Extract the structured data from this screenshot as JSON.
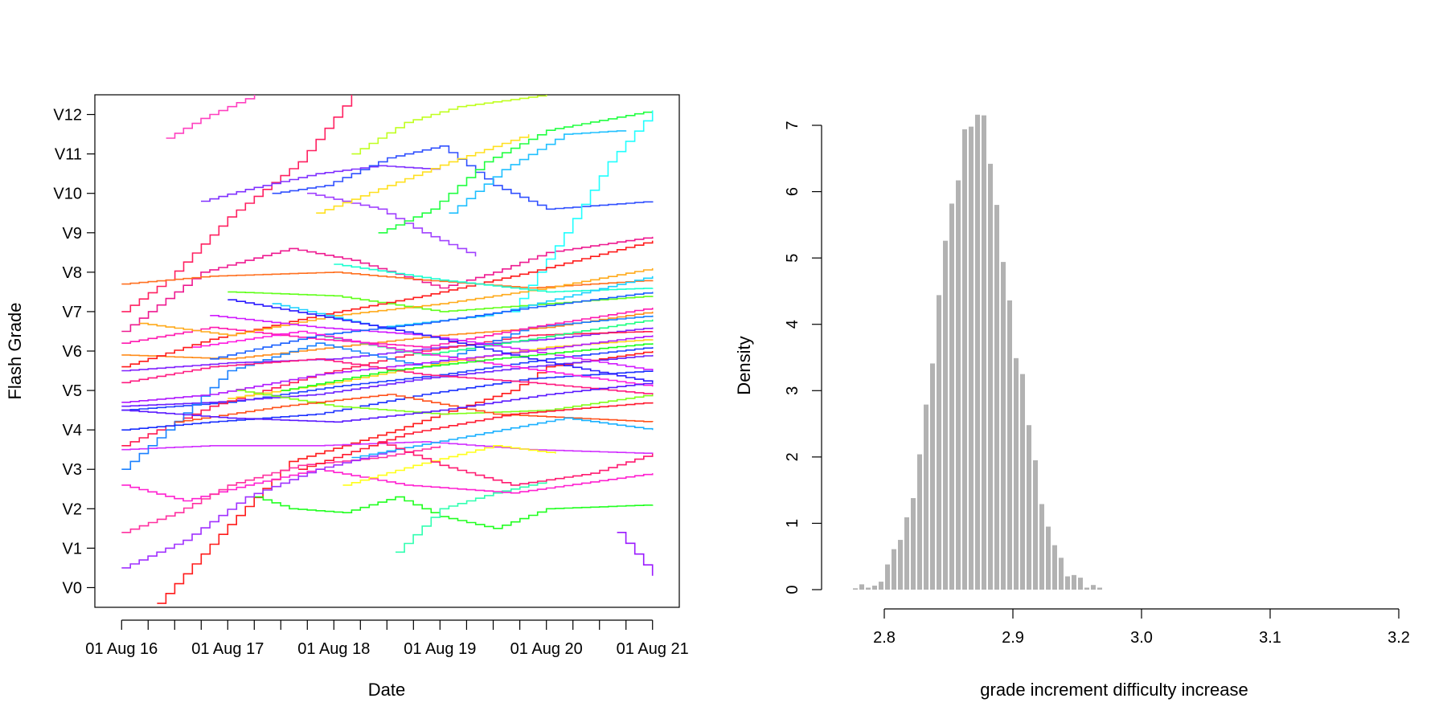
{
  "chart_data": [
    {
      "type": "line",
      "step": true,
      "title": "",
      "xlabel": "Date",
      "ylabel": "Flash Grade",
      "x_ticks": [
        "01 Aug 16",
        "01 Aug 17",
        "01 Aug 18",
        "01 Aug 19",
        "01 Aug 20",
        "01 Aug 21"
      ],
      "x_tick_dates": [
        "2016-08-01",
        "2017-08-01",
        "2018-08-01",
        "2019-08-01",
        "2020-08-01",
        "2021-08-01"
      ],
      "x_minor_ticks_per_year": 4,
      "xlim": [
        "2016-05-01",
        "2021-11-01"
      ],
      "y_ticks": [
        "V0",
        "V1",
        "V2",
        "V3",
        "V4",
        "V5",
        "V6",
        "V7",
        "V8",
        "V9",
        "V10",
        "V11",
        "V12"
      ],
      "ylim": [
        -0.5,
        12.5
      ],
      "grid": false,
      "legend": "none",
      "series": [
        {
          "color": "#ff1a1a",
          "x": [
            "2016-12-01",
            "2017-08-01",
            "2018-03-01",
            "2019-03-01",
            "2019-08-01",
            "2020-04-01",
            "2020-08-01",
            "2021-08-01"
          ],
          "y": [
            -0.4,
            1.6,
            3.2,
            4.0,
            4.4,
            5.0,
            5.6,
            6.0
          ]
        },
        {
          "color": "#ff2060",
          "x": [
            "2016-08-01",
            "2017-01-01",
            "2017-08-01",
            "2018-04-01",
            "2018-10-01"
          ],
          "y": [
            7.0,
            7.8,
            9.4,
            10.8,
            12.5
          ]
        },
        {
          "color": "#ff40c0",
          "x": [
            "2017-01-01",
            "2017-05-01",
            "2017-11-01"
          ],
          "y": [
            11.4,
            11.9,
            12.5
          ]
        },
        {
          "color": "#ee1a90",
          "x": [
            "2016-08-01",
            "2016-11-01",
            "2017-05-01",
            "2018-03-01",
            "2018-10-01",
            "2019-08-01",
            "2020-02-01",
            "2020-08-01",
            "2021-08-01"
          ],
          "y": [
            6.5,
            7.0,
            8.0,
            8.6,
            8.3,
            7.6,
            8.0,
            8.5,
            8.9
          ]
        },
        {
          "color": "#ff7020",
          "x": [
            "2016-08-01",
            "2017-06-01",
            "2018-08-01",
            "2019-06-01",
            "2020-06-01",
            "2021-08-01"
          ],
          "y": [
            7.7,
            7.9,
            8.0,
            7.8,
            7.6,
            7.8
          ]
        },
        {
          "color": "#2040ff",
          "x": [
            "2016-08-01",
            "2017-08-01",
            "2018-08-01",
            "2019-08-01",
            "2020-08-01",
            "2021-08-01"
          ],
          "y": [
            4.5,
            4.7,
            5.1,
            5.4,
            5.8,
            6.1
          ]
        },
        {
          "color": "#6a20ff",
          "x": [
            "2016-08-01",
            "2017-06-01",
            "2018-06-01",
            "2019-06-01",
            "2020-06-01",
            "2021-08-01"
          ],
          "y": [
            4.6,
            4.7,
            4.9,
            5.3,
            5.6,
            5.9
          ]
        },
        {
          "color": "#8030ff",
          "x": [
            "2017-05-01",
            "2017-10-01",
            "2018-06-01",
            "2019-01-01",
            "2019-08-01"
          ],
          "y": [
            9.8,
            10.1,
            10.5,
            10.7,
            10.6
          ]
        },
        {
          "color": "#3050ff",
          "x": [
            "2018-01-01",
            "2018-07-01",
            "2019-02-01",
            "2019-08-01",
            "2020-02-01",
            "2020-08-01",
            "2021-08-01"
          ],
          "y": [
            10.0,
            10.2,
            10.9,
            11.2,
            10.2,
            9.6,
            9.8
          ]
        },
        {
          "color": "#a040ff",
          "x": [
            "2018-05-01",
            "2019-01-01",
            "2019-06-01",
            "2019-12-01"
          ],
          "y": [
            10.0,
            9.6,
            9.0,
            8.4
          ]
        },
        {
          "color": "#c0ff20",
          "x": [
            "2018-10-01",
            "2019-04-01",
            "2019-10-01",
            "2020-08-01"
          ],
          "y": [
            11.0,
            11.8,
            12.2,
            12.5
          ]
        },
        {
          "color": "#ffe020",
          "x": [
            "2018-06-01",
            "2019-02-01",
            "2019-09-01",
            "2020-06-01"
          ],
          "y": [
            9.5,
            10.2,
            10.8,
            11.5
          ]
        },
        {
          "color": "#20ff40",
          "x": [
            "2019-01-01",
            "2019-07-01",
            "2020-01-01",
            "2020-08-01",
            "2021-08-01"
          ],
          "y": [
            9.0,
            9.6,
            10.8,
            11.6,
            12.1
          ]
        },
        {
          "color": "#20c0ff",
          "x": [
            "2019-09-01",
            "2020-03-01",
            "2020-10-01",
            "2021-05-01"
          ],
          "y": [
            9.5,
            10.6,
            11.5,
            11.6
          ]
        },
        {
          "color": "#20ffff",
          "x": [
            "2020-04-01",
            "2020-10-01",
            "2021-03-01",
            "2021-08-01"
          ],
          "y": [
            7.0,
            9.0,
            10.8,
            12.1
          ]
        },
        {
          "color": "#20ff20",
          "x": [
            "2017-11-01",
            "2018-03-01",
            "2018-09-01",
            "2019-03-01",
            "2019-08-01",
            "2020-02-01",
            "2020-08-01",
            "2021-08-01"
          ],
          "y": [
            2.3,
            2.0,
            1.9,
            2.3,
            1.8,
            1.5,
            2.0,
            2.1
          ]
        },
        {
          "color": "#30ffb0",
          "x": [
            "2019-03-01",
            "2019-08-01",
            "2020-02-01",
            "2020-08-01"
          ],
          "y": [
            0.9,
            2.0,
            2.4,
            2.7
          ]
        },
        {
          "color": "#ff20d0",
          "x": [
            "2016-08-01",
            "2017-03-01",
            "2017-10-01",
            "2018-06-01",
            "2019-04-01",
            "2020-04-01",
            "2021-08-01"
          ],
          "y": [
            2.6,
            2.2,
            2.6,
            3.0,
            2.6,
            2.4,
            2.9
          ]
        },
        {
          "color": "#ff30a0",
          "x": [
            "2016-08-01",
            "2017-02-01",
            "2017-08-01",
            "2018-04-01",
            "2019-01-01",
            "2019-08-01"
          ],
          "y": [
            1.4,
            1.9,
            2.6,
            3.1,
            3.3,
            3.6
          ]
        },
        {
          "color": "#d030ff",
          "x": [
            "2016-08-01",
            "2017-06-01",
            "2018-06-01",
            "2019-06-01",
            "2020-06-01",
            "2021-08-01"
          ],
          "y": [
            3.5,
            3.6,
            3.6,
            3.7,
            3.5,
            3.4
          ]
        },
        {
          "color": "#a030ff",
          "x": [
            "2016-08-01",
            "2017-03-01",
            "2017-10-01",
            "2018-06-01",
            "2019-03-01"
          ],
          "y": [
            0.5,
            1.2,
            2.3,
            3.0,
            3.5
          ]
        },
        {
          "color": "#8020ff",
          "x": [
            "2016-08-01",
            "2017-08-01",
            "2018-08-01",
            "2019-08-01",
            "2020-08-01",
            "2021-08-01"
          ],
          "y": [
            5.5,
            5.7,
            5.8,
            6.1,
            6.3,
            6.6
          ]
        },
        {
          "color": "#ff1a50",
          "x": [
            "2016-08-01",
            "2017-06-01",
            "2018-06-01",
            "2019-06-01",
            "2020-06-01",
            "2021-08-01"
          ],
          "y": [
            3.6,
            4.6,
            5.4,
            6.0,
            6.4,
            6.5
          ]
        },
        {
          "color": "#ff8c1a",
          "x": [
            "2016-08-01",
            "2017-08-01",
            "2018-08-01",
            "2019-08-01",
            "2020-08-01",
            "2021-08-01"
          ],
          "y": [
            5.9,
            5.8,
            6.1,
            6.4,
            6.6,
            7.0
          ]
        },
        {
          "color": "#1a80ff",
          "x": [
            "2016-08-01",
            "2017-01-01",
            "2017-08-01",
            "2018-06-01",
            "2019-06-01",
            "2020-06-01",
            "2021-08-01"
          ],
          "y": [
            3.0,
            4.0,
            5.5,
            6.2,
            5.6,
            6.6,
            6.9
          ]
        },
        {
          "color": "#60ff1a",
          "x": [
            "2017-08-01",
            "2018-08-01",
            "2019-08-01",
            "2020-08-01",
            "2021-08-01"
          ],
          "y": [
            7.5,
            7.4,
            7.0,
            7.2,
            7.4
          ]
        },
        {
          "color": "#1aff80",
          "x": [
            "2018-06-01",
            "2019-06-01",
            "2020-06-01",
            "2021-08-01"
          ],
          "y": [
            6.4,
            5.9,
            6.3,
            6.8
          ]
        },
        {
          "color": "#ffd21a",
          "x": [
            "2017-08-01",
            "2018-08-01",
            "2019-08-01",
            "2020-08-01",
            "2021-08-01"
          ],
          "y": [
            4.8,
            5.2,
            5.7,
            6.1,
            6.3
          ]
        },
        {
          "color": "#ff1ab0",
          "x": [
            "2016-08-01",
            "2017-06-01",
            "2018-06-01",
            "2019-06-01",
            "2020-06-01",
            "2021-08-01"
          ],
          "y": [
            6.2,
            6.6,
            6.3,
            6.1,
            6.6,
            7.1
          ]
        },
        {
          "color": "#1a30ff",
          "x": [
            "2016-08-01",
            "2017-06-01",
            "2018-06-01",
            "2019-06-01",
            "2020-06-01",
            "2021-08-01"
          ],
          "y": [
            4.0,
            4.2,
            4.4,
            4.9,
            5.3,
            5.5
          ]
        },
        {
          "color": "#ff1a1a",
          "x": [
            "2016-08-01",
            "2017-06-01",
            "2018-06-01",
            "2019-06-01",
            "2020-06-01",
            "2021-08-01"
          ],
          "y": [
            5.6,
            6.3,
            6.9,
            7.4,
            8.0,
            8.8
          ]
        },
        {
          "color": "#b01aff",
          "x": [
            "2016-08-01",
            "2017-06-01",
            "2018-06-01",
            "2019-06-01",
            "2020-06-01",
            "2021-08-01"
          ],
          "y": [
            4.7,
            4.9,
            5.4,
            5.7,
            6.0,
            6.4
          ]
        },
        {
          "color": "#ffaa1a",
          "x": [
            "2016-10-01",
            "2017-08-01",
            "2018-08-01",
            "2019-08-01",
            "2020-08-01",
            "2021-08-01"
          ],
          "y": [
            6.7,
            6.4,
            6.9,
            7.2,
            7.6,
            8.1
          ]
        },
        {
          "color": "#1affd0",
          "x": [
            "2018-08-01",
            "2019-08-01",
            "2020-08-01",
            "2021-08-01"
          ],
          "y": [
            8.2,
            7.8,
            7.5,
            7.6
          ]
        },
        {
          "color": "#1ad0ff",
          "x": [
            "2018-01-01",
            "2019-01-01",
            "2020-01-01",
            "2021-08-01"
          ],
          "y": [
            7.2,
            6.6,
            6.9,
            7.9
          ]
        },
        {
          "color": "#ff1a80",
          "x": [
            "2016-08-01",
            "2017-06-01",
            "2018-06-01",
            "2019-06-01",
            "2020-06-01",
            "2021-08-01"
          ],
          "y": [
            5.2,
            5.6,
            5.8,
            5.4,
            5.2,
            4.9
          ]
        },
        {
          "color": "#d01aff",
          "x": [
            "2017-06-01",
            "2018-06-01",
            "2019-06-01",
            "2020-06-01",
            "2021-08-01"
          ],
          "y": [
            6.9,
            6.6,
            6.4,
            6.0,
            5.5
          ]
        },
        {
          "color": "#2a1aff",
          "x": [
            "2017-08-01",
            "2018-06-01",
            "2019-06-01",
            "2020-06-01",
            "2021-08-01"
          ],
          "y": [
            7.3,
            6.9,
            6.4,
            5.8,
            5.2
          ]
        },
        {
          "color": "#80ff1a",
          "x": [
            "2017-09-01",
            "2018-08-01",
            "2019-08-01",
            "2020-08-01",
            "2021-08-01"
          ],
          "y": [
            5.0,
            4.6,
            4.4,
            4.5,
            4.9
          ]
        },
        {
          "color": "#ff501a",
          "x": [
            "2017-02-01",
            "2018-02-01",
            "2019-02-01",
            "2020-02-01",
            "2021-08-01"
          ],
          "y": [
            4.2,
            4.6,
            4.9,
            4.4,
            4.2
          ]
        },
        {
          "color": "#1a60ff",
          "x": [
            "2017-06-01",
            "2018-06-01",
            "2019-06-01",
            "2020-06-01",
            "2021-08-01"
          ],
          "y": [
            5.8,
            6.4,
            6.7,
            7.1,
            7.5
          ]
        },
        {
          "color": "#ff1ae0",
          "x": [
            "2017-04-01",
            "2018-04-01",
            "2019-04-01",
            "2020-04-01",
            "2021-08-01"
          ],
          "y": [
            6.1,
            6.5,
            6.0,
            5.6,
            5.1
          ]
        },
        {
          "color": "#1aff1a",
          "x": [
            "2018-02-01",
            "2019-02-01",
            "2020-02-01",
            "2021-08-01"
          ],
          "y": [
            5.0,
            5.5,
            5.8,
            6.2
          ]
        },
        {
          "color": "#ff1a30",
          "x": [
            "2018-04-01",
            "2019-04-01",
            "2020-04-01",
            "2021-08-01"
          ],
          "y": [
            3.0,
            3.9,
            4.4,
            4.7
          ]
        },
        {
          "color": "#ffff1a",
          "x": [
            "2018-09-01",
            "2019-05-01",
            "2020-02-01",
            "2020-09-01"
          ],
          "y": [
            2.6,
            3.1,
            3.6,
            3.4
          ]
        },
        {
          "color": "#5a1aff",
          "x": [
            "2016-08-01",
            "2017-08-01",
            "2018-08-01",
            "2019-08-01",
            "2020-08-01",
            "2021-08-01"
          ],
          "y": [
            4.5,
            4.3,
            4.2,
            4.5,
            4.9,
            5.2
          ]
        },
        {
          "color": "#1ab0ff",
          "x": [
            "2018-10-01",
            "2019-10-01",
            "2020-10-01",
            "2021-08-01"
          ],
          "y": [
            3.3,
            3.8,
            4.3,
            4.0
          ]
        },
        {
          "color": "#ff1a70",
          "x": [
            "2019-01-01",
            "2019-08-01",
            "2020-04-01",
            "2021-01-01",
            "2021-08-01"
          ],
          "y": [
            3.7,
            3.1,
            2.6,
            2.9,
            3.4
          ]
        },
        {
          "color": "#9a1aff",
          "x": [
            "2021-04-01",
            "2021-08-01"
          ],
          "y": [
            1.4,
            0.3
          ]
        }
      ]
    },
    {
      "type": "bar",
      "histogram": true,
      "title": "",
      "xlabel": "grade increment difficulty increase",
      "ylabel": "Density",
      "x_ticks": [
        "2.8",
        "2.9",
        "3.0",
        "3.1",
        "3.2"
      ],
      "x_tick_values": [
        2.8,
        2.9,
        3.0,
        3.1,
        3.2
      ],
      "y_ticks": [
        "0",
        "1",
        "2",
        "3",
        "4",
        "5",
        "6",
        "7"
      ],
      "y_tick_values": [
        0,
        1,
        2,
        3,
        4,
        5,
        6,
        7
      ],
      "xlim": [
        2.78,
        3.2
      ],
      "ylim": [
        0,
        7
      ],
      "bin_start": 2.775,
      "bin_width": 0.005,
      "bar_color": "#b2b2b2",
      "values": [
        0.02,
        0.08,
        0.03,
        0.06,
        0.12,
        0.38,
        0.61,
        0.75,
        1.09,
        1.38,
        2.04,
        2.79,
        3.41,
        4.44,
        5.26,
        5.82,
        6.17,
        6.94,
        6.98,
        7.16,
        7.15,
        6.42,
        5.8,
        4.94,
        4.36,
        3.49,
        3.25,
        2.48,
        1.95,
        1.29,
        0.95,
        0.67,
        0.48,
        0.2,
        0.22,
        0.18,
        0.03,
        0.07,
        0.03
      ],
      "grid": false,
      "legend": "none"
    }
  ]
}
